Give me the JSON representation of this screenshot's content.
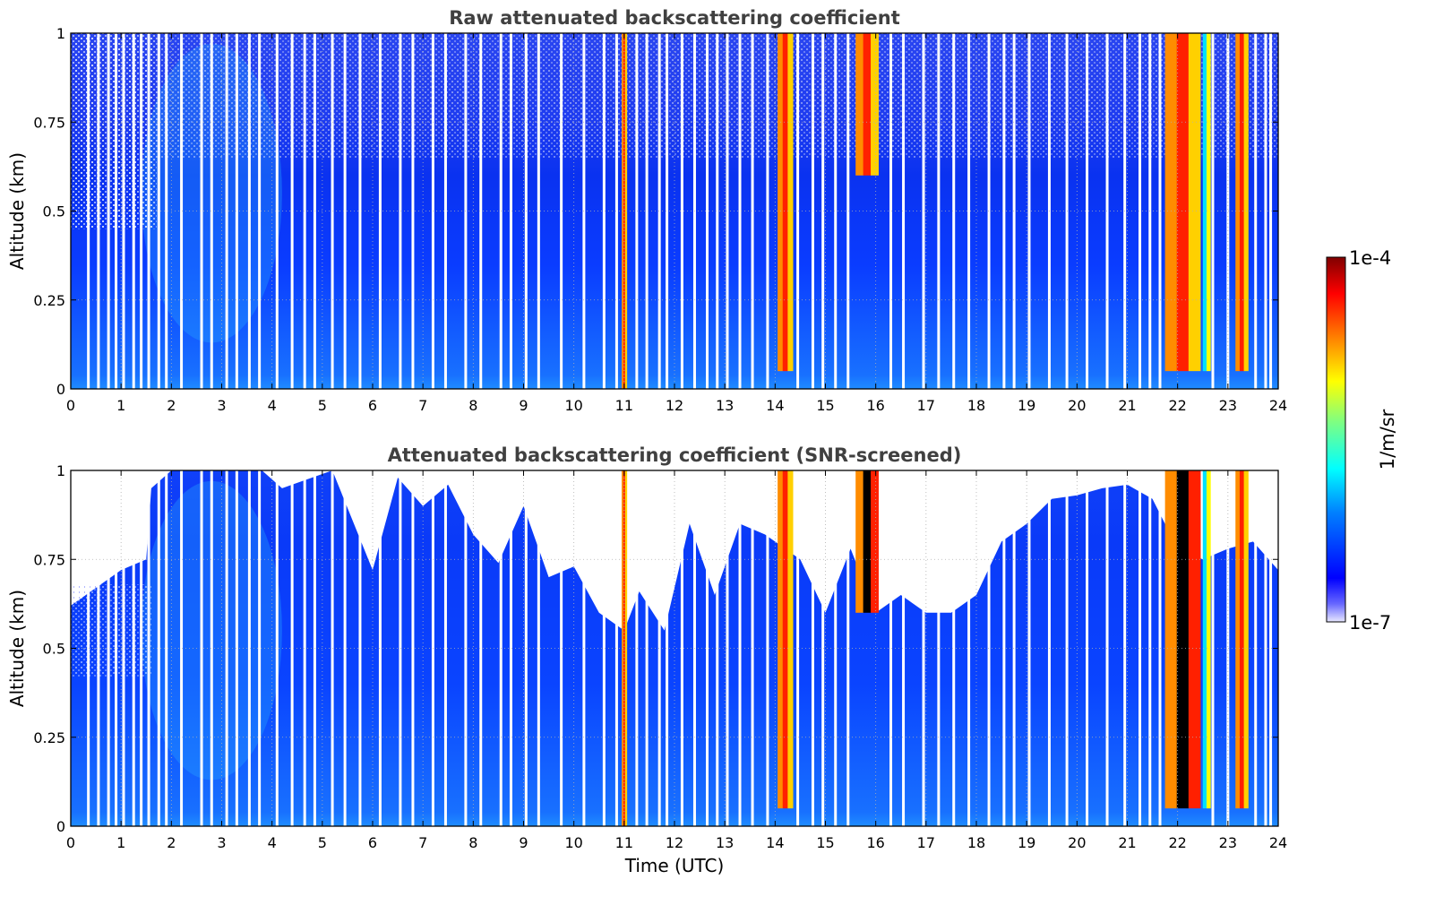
{
  "colors": {
    "title": "#404040",
    "no_data": "#ffffff",
    "colormap_jet": [
      "#000080",
      "#0000ff",
      "#00ffff",
      "#ffff00",
      "#ff0000",
      "#800000"
    ],
    "colormap_low": "#e8e8ff",
    "saturated": "#000000"
  },
  "chart_data": [
    {
      "type": "heatmap",
      "title": "Raw attenuated backscattering coefficient",
      "xlabel": "",
      "ylabel": "Altitude (km)",
      "xlim": [
        0,
        24
      ],
      "ylim": [
        0,
        1
      ],
      "x_ticks": [
        0,
        1,
        2,
        3,
        4,
        5,
        6,
        7,
        8,
        9,
        10,
        11,
        12,
        13,
        14,
        15,
        16,
        17,
        18,
        19,
        20,
        21,
        22,
        23,
        24
      ],
      "x_tick_labels": [
        "0",
        "1",
        "2",
        "3",
        "4",
        "5",
        "6",
        "7",
        "8",
        "9",
        "10",
        "11",
        "12",
        "13",
        "14",
        "15",
        "16",
        "17",
        "18",
        "19",
        "20",
        "21",
        "22",
        "23",
        "24"
      ],
      "y_ticks": [
        0,
        0.25,
        0.5,
        0.75,
        1
      ],
      "y_tick_labels": [
        "0",
        "0.25",
        "0.5",
        "0.75",
        "1"
      ],
      "grid": true,
      "screened": false,
      "clouds": [
        {
          "t_start": 10.95,
          "t_end": 11.05,
          "z_base": 0,
          "z_top": 1,
          "level": "high"
        },
        {
          "t_start": 14.05,
          "t_end": 14.35,
          "z_base": 0.05,
          "z_top": 1,
          "level": "high"
        },
        {
          "t_start": 15.6,
          "t_end": 16.05,
          "z_base": 0.6,
          "z_top": 1,
          "level": "high"
        },
        {
          "t_start": 21.75,
          "t_end": 22.45,
          "z_base": 0.05,
          "z_top": 1,
          "level": "high"
        },
        {
          "t_start": 22.5,
          "t_end": 22.65,
          "z_base": 0.05,
          "z_top": 1,
          "level": "mid"
        },
        {
          "t_start": 23.15,
          "t_end": 23.4,
          "z_base": 0.05,
          "z_top": 1,
          "level": "high"
        }
      ],
      "data_gaps_time": [
        0.35,
        0.55,
        0.75,
        0.9,
        1.05,
        1.25,
        1.4,
        1.55,
        1.75,
        1.9,
        2.2,
        2.6,
        2.8,
        3.1,
        3.3,
        3.55,
        3.75,
        4.1,
        4.4,
        4.65,
        4.85,
        5.2,
        5.45,
        5.75,
        6.15,
        6.55,
        6.8,
        7.2,
        7.45,
        7.85,
        8.15,
        8.55,
        8.75,
        9.05,
        9.3,
        9.75,
        10.2,
        10.6,
        10.85,
        11.25,
        11.45,
        11.7,
        11.85,
        12.15,
        12.4,
        12.65,
        12.85,
        13.05,
        13.3,
        13.55,
        13.85,
        14.45,
        14.75,
        14.95,
        15.2,
        15.45,
        16.3,
        16.55,
        16.95,
        17.25,
        17.55,
        17.85,
        18.25,
        18.55,
        18.75,
        19.05,
        19.45,
        19.8,
        20.2,
        20.6,
        20.95,
        21.25,
        21.45,
        21.65,
        22.7,
        23.0,
        23.55,
        23.75,
        23.85
      ],
      "colorbar": {
        "vmin": "1e-7",
        "vmax": "1e-4",
        "label": "1/m/sr"
      }
    },
    {
      "type": "heatmap",
      "title": "Attenuated backscattering coefficient (SNR-screened)",
      "xlabel": "Time (UTC)",
      "ylabel": "Altitude (km)",
      "xlim": [
        0,
        24
      ],
      "ylim": [
        0,
        1
      ],
      "x_ticks": [
        0,
        1,
        2,
        3,
        4,
        5,
        6,
        7,
        8,
        9,
        10,
        11,
        12,
        13,
        14,
        15,
        16,
        17,
        18,
        19,
        20,
        21,
        22,
        23,
        24
      ],
      "x_tick_labels": [
        "0",
        "1",
        "2",
        "3",
        "4",
        "5",
        "6",
        "7",
        "8",
        "9",
        "10",
        "11",
        "12",
        "13",
        "14",
        "15",
        "16",
        "17",
        "18",
        "19",
        "20",
        "21",
        "22",
        "23",
        "24"
      ],
      "y_ticks": [
        0,
        0.25,
        0.5,
        0.75,
        1
      ],
      "y_tick_labels": [
        "0",
        "0.25",
        "0.5",
        "0.75",
        "1"
      ],
      "grid": true,
      "screened": true,
      "snr_top_km": [
        [
          0,
          0.62
        ],
        [
          1,
          0.72
        ],
        [
          1.5,
          0.75
        ],
        [
          1.6,
          0.95
        ],
        [
          2,
          1
        ],
        [
          3.8,
          1
        ],
        [
          4.2,
          0.95
        ],
        [
          4.6,
          0.97
        ],
        [
          5.2,
          1
        ],
        [
          6,
          0.72
        ],
        [
          6.5,
          0.98
        ],
        [
          7,
          0.9
        ],
        [
          7.5,
          0.96
        ],
        [
          8,
          0.82
        ],
        [
          8.5,
          0.74
        ],
        [
          9,
          0.9
        ],
        [
          9.5,
          0.7
        ],
        [
          10,
          0.73
        ],
        [
          10.5,
          0.6
        ],
        [
          11,
          0.55
        ],
        [
          11.3,
          0.66
        ],
        [
          11.8,
          0.55
        ],
        [
          12.3,
          0.85
        ],
        [
          12.8,
          0.65
        ],
        [
          13.3,
          0.85
        ],
        [
          13.8,
          0.82
        ],
        [
          14.5,
          0.75
        ],
        [
          15,
          0.6
        ],
        [
          15.5,
          0.78
        ],
        [
          16,
          0.6
        ],
        [
          16.5,
          0.65
        ],
        [
          17,
          0.6
        ],
        [
          17.5,
          0.6
        ],
        [
          18,
          0.65
        ],
        [
          18.5,
          0.8
        ],
        [
          19,
          0.85
        ],
        [
          19.5,
          0.92
        ],
        [
          20,
          0.93
        ],
        [
          20.5,
          0.95
        ],
        [
          21,
          0.96
        ],
        [
          21.5,
          0.92
        ],
        [
          22,
          0.78
        ],
        [
          22.5,
          0.75
        ],
        [
          23,
          0.78
        ],
        [
          23.5,
          0.8
        ],
        [
          24,
          0.72
        ]
      ],
      "clouds": [
        {
          "t_start": 10.95,
          "t_end": 11.05,
          "z_base": 0,
          "z_top": 1,
          "level": "high"
        },
        {
          "t_start": 14.05,
          "t_end": 14.35,
          "z_base": 0.05,
          "z_top": 1,
          "level": "high"
        },
        {
          "t_start": 15.6,
          "t_end": 16.05,
          "z_base": 0.6,
          "z_top": 1,
          "level": "saturated"
        },
        {
          "t_start": 21.75,
          "t_end": 22.45,
          "z_base": 0.05,
          "z_top": 1,
          "level": "saturated"
        },
        {
          "t_start": 22.5,
          "t_end": 22.65,
          "z_base": 0.05,
          "z_top": 1,
          "level": "mid"
        },
        {
          "t_start": 23.15,
          "t_end": 23.4,
          "z_base": 0.05,
          "z_top": 1,
          "level": "high"
        }
      ],
      "data_gaps_time": [
        0.35,
        0.55,
        0.75,
        0.9,
        1.05,
        1.25,
        1.4,
        1.55,
        1.75,
        1.9,
        2.2,
        2.6,
        2.8,
        3.1,
        3.3,
        3.55,
        3.75,
        4.1,
        4.4,
        4.65,
        4.85,
        5.2,
        5.45,
        5.75,
        6.15,
        6.55,
        6.8,
        7.2,
        7.45,
        7.85,
        8.15,
        8.55,
        8.75,
        9.05,
        9.3,
        9.75,
        10.2,
        10.6,
        10.85,
        11.25,
        11.45,
        11.7,
        11.85,
        12.15,
        12.4,
        12.65,
        12.85,
        13.05,
        13.3,
        13.55,
        13.85,
        14.45,
        14.75,
        14.95,
        15.2,
        15.45,
        16.3,
        16.55,
        16.95,
        17.25,
        17.55,
        17.85,
        18.25,
        18.55,
        18.75,
        19.05,
        19.45,
        19.8,
        20.2,
        20.6,
        20.95,
        21.25,
        21.45,
        21.65,
        22.7,
        23.0,
        23.55,
        23.75,
        23.85
      ],
      "colorbar": {
        "vmin": "1e-7",
        "vmax": "1e-4",
        "label": "1/m/sr"
      }
    }
  ]
}
